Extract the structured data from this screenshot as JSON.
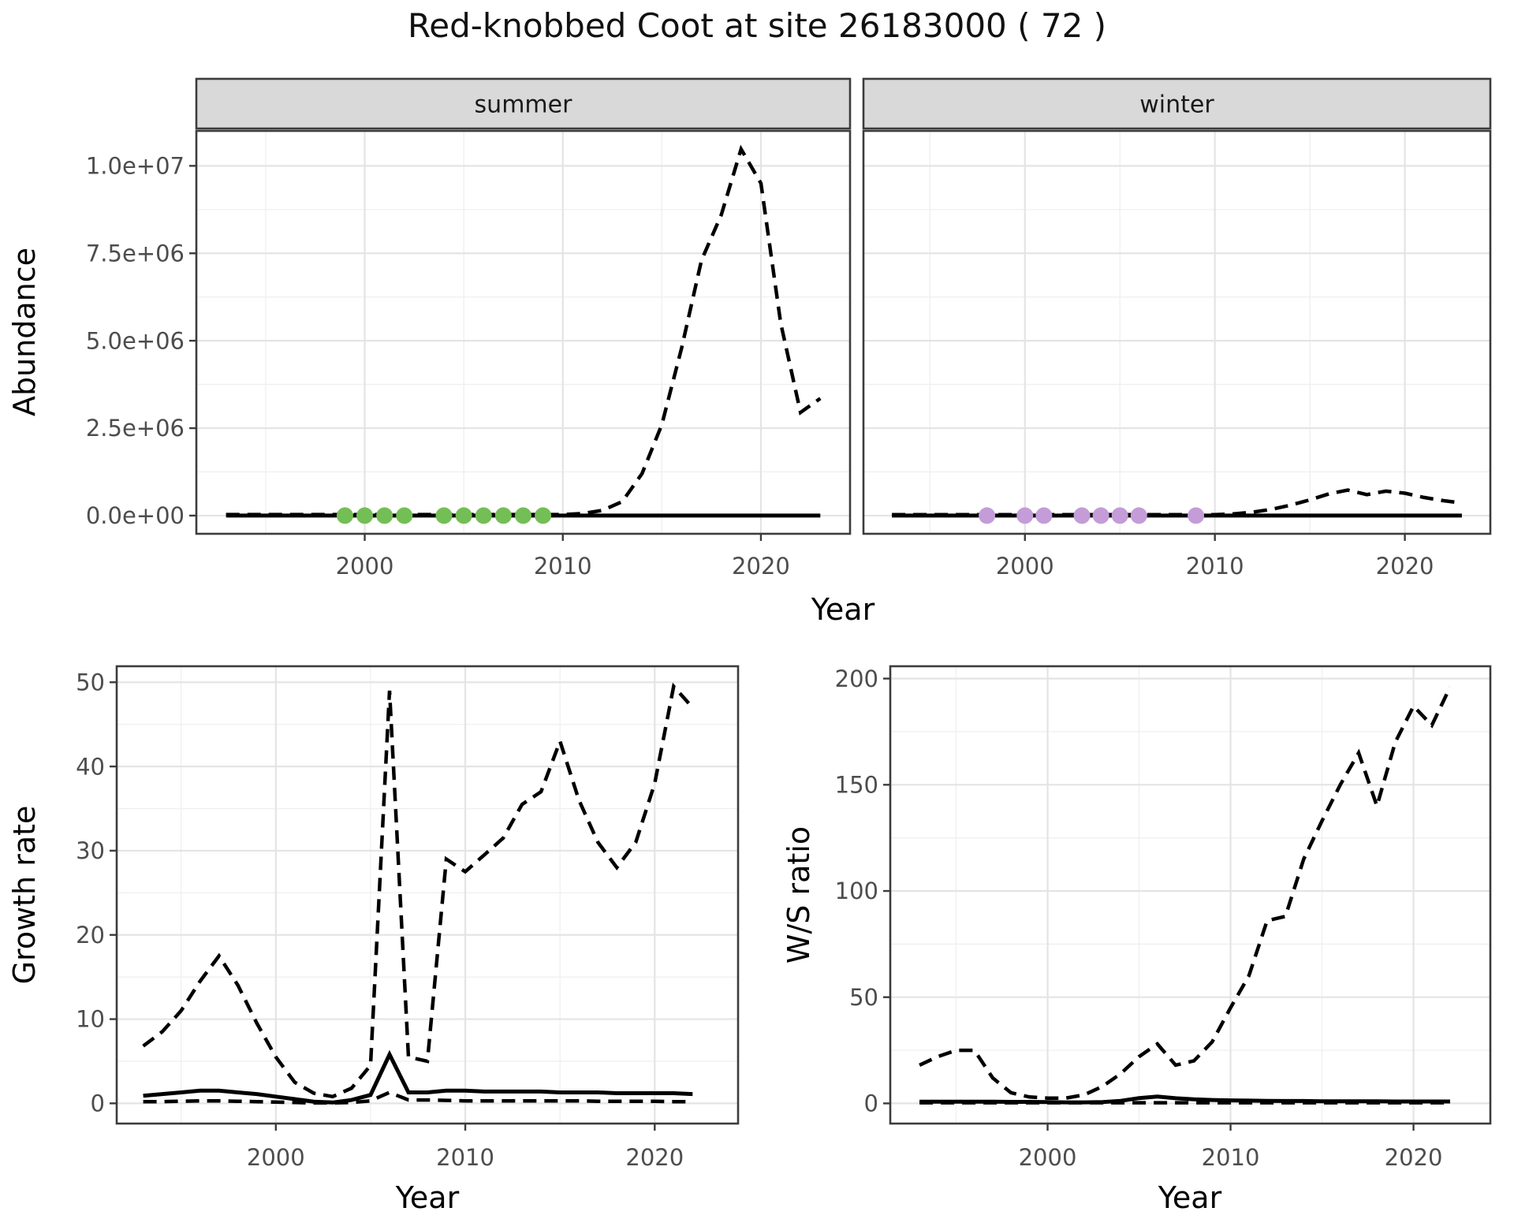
{
  "figure": {
    "title": "Red-knobbed Coot at site 26183000 ( 72 )"
  },
  "colors": {
    "line": "#000000",
    "summer_points": "#74BE56",
    "winter_points": "#C49CD8",
    "strip_bg": "#D9D9D9",
    "strip_text": "#1A1A1A",
    "grid_major": "#E4E4E4",
    "grid_minor": "#F0F0F0",
    "panel_border": "#3C3C3C",
    "tick_text": "#4D4D4D",
    "axis_title_text": "#000000"
  },
  "chart_data": [
    {
      "id": "abundance",
      "type": "line",
      "xlabel": "Year",
      "ylabel": "Abundance",
      "xticks": {
        "values": [
          2000,
          2010,
          2020
        ],
        "labels": [
          "2000",
          "2010",
          "2020"
        ]
      },
      "yticks": {
        "values": [
          0,
          2500000,
          5000000,
          7500000,
          10000000
        ],
        "labels": [
          "0.0e+00",
          "2.5e+06",
          "5.0e+06",
          "7.5e+06",
          "1.0e+07"
        ]
      },
      "xlim": [
        1991.5,
        2024.5
      ],
      "ylim": [
        -520000,
        11000000
      ],
      "years": [
        1993,
        1994,
        1995,
        1996,
        1997,
        1998,
        1999,
        2000,
        2001,
        2002,
        2003,
        2004,
        2005,
        2006,
        2007,
        2008,
        2009,
        2010,
        2011,
        2012,
        2013,
        2014,
        2015,
        2016,
        2017,
        2018,
        2019,
        2020,
        2021,
        2022,
        2023
      ],
      "facets": [
        {
          "label": "summer",
          "points_color": "summer_points",
          "points_years": [
            1999,
            2000,
            2001,
            2002,
            2004,
            2005,
            2006,
            2007,
            2008,
            2009
          ],
          "points_value": 0,
          "series": [
            {
              "name": "modeled-dashed",
              "style": "dashed",
              "values": [
                30000,
                30000,
                30000,
                30000,
                30000,
                30000,
                30000,
                30000,
                30000,
                30000,
                30000,
                30000,
                30000,
                30000,
                30000,
                30000,
                30000,
                30000,
                60000,
                150000,
                400000,
                1200000,
                2600000,
                4800000,
                7300000,
                8600000,
                10480000,
                9500000,
                5500000,
                2950000,
                3350000
              ]
            },
            {
              "name": "observed-solid",
              "style": "solid",
              "values": [
                0,
                0,
                0,
                0,
                0,
                0,
                0,
                0,
                0,
                0,
                0,
                0,
                0,
                0,
                0,
                0,
                0,
                0,
                0,
                0,
                0,
                0,
                0,
                0,
                0,
                0,
                0,
                0,
                0,
                0,
                0
              ]
            }
          ]
        },
        {
          "label": "winter",
          "points_color": "winter_points",
          "points_years": [
            1998,
            2000,
            2001,
            2003,
            2004,
            2005,
            2006,
            2009
          ],
          "points_value": 0,
          "series": [
            {
              "name": "modeled-dashed",
              "style": "dashed",
              "values": [
                25000,
                25000,
                25000,
                25000,
                25000,
                25000,
                25000,
                25000,
                25000,
                25000,
                25000,
                25000,
                25000,
                25000,
                25000,
                25000,
                25000,
                25000,
                50000,
                100000,
                180000,
                300000,
                450000,
                620000,
                730000,
                600000,
                700000,
                640000,
                520000,
                430000,
                360000
              ]
            },
            {
              "name": "observed-solid",
              "style": "solid",
              "values": [
                0,
                0,
                0,
                0,
                0,
                0,
                0,
                0,
                0,
                0,
                0,
                0,
                0,
                0,
                0,
                0,
                0,
                0,
                0,
                0,
                0,
                0,
                0,
                0,
                0,
                0,
                0,
                0,
                0,
                0,
                0
              ]
            }
          ]
        }
      ]
    },
    {
      "id": "growth_rate",
      "type": "line",
      "xlabel": "Year",
      "ylabel": "Growth rate",
      "xticks": {
        "values": [
          2000,
          2010,
          2020
        ],
        "labels": [
          "2000",
          "2010",
          "2020"
        ]
      },
      "yticks": {
        "values": [
          0,
          10,
          20,
          30,
          40,
          50
        ],
        "labels": [
          "0",
          "10",
          "20",
          "30",
          "40",
          "50"
        ]
      },
      "xlim": [
        1991.6,
        2024.4
      ],
      "ylim": [
        -2.4,
        51.9
      ],
      "years": [
        1993,
        1994,
        1995,
        1996,
        1997,
        1998,
        1999,
        2000,
        2001,
        2002,
        2003,
        2004,
        2005,
        2006,
        2007,
        2008,
        2009,
        2010,
        2011,
        2012,
        2013,
        2014,
        2015,
        2016,
        2017,
        2018,
        2019,
        2020,
        2021,
        2022
      ],
      "series": [
        {
          "name": "upper-ci-dashed",
          "style": "dashed",
          "values": [
            6.8,
            8.5,
            11,
            14.5,
            17.5,
            14,
            9.5,
            5.5,
            2.5,
            1.2,
            0.8,
            1.8,
            4.5,
            49,
            5.5,
            5,
            29,
            27.5,
            29.5,
            31.5,
            35.5,
            37,
            43,
            36,
            31,
            28,
            31,
            38,
            49.5,
            47
          ]
        },
        {
          "name": "estimate-solid",
          "style": "solid",
          "values": [
            0.9,
            1.1,
            1.3,
            1.5,
            1.5,
            1.3,
            1.1,
            0.8,
            0.5,
            0.2,
            0.1,
            0.4,
            1,
            5.8,
            1.3,
            1.3,
            1.5,
            1.5,
            1.4,
            1.4,
            1.4,
            1.4,
            1.3,
            1.3,
            1.3,
            1.2,
            1.2,
            1.2,
            1.2,
            1.1
          ]
        },
        {
          "name": "lower-ci-dashed",
          "style": "dashed",
          "values": [
            0.2,
            0.2,
            0.25,
            0.3,
            0.3,
            0.25,
            0.2,
            0.15,
            0.1,
            0.05,
            0.05,
            0.1,
            0.3,
            1.3,
            0.4,
            0.4,
            0.35,
            0.3,
            0.3,
            0.3,
            0.3,
            0.3,
            0.3,
            0.3,
            0.25,
            0.25,
            0.25,
            0.25,
            0.2,
            0.2
          ]
        }
      ]
    },
    {
      "id": "ws_ratio",
      "type": "line",
      "xlabel": "Year",
      "ylabel": "W/S ratio",
      "xticks": {
        "values": [
          2000,
          2010,
          2020
        ],
        "labels": [
          "2000",
          "2010",
          "2020"
        ]
      },
      "yticks": {
        "values": [
          0,
          50,
          100,
          150,
          200
        ],
        "labels": [
          "0",
          "50",
          "100",
          "150",
          "200"
        ]
      },
      "xlim": [
        1991.4,
        2024.2
      ],
      "ylim": [
        -9.5,
        205.8
      ],
      "years": [
        1993,
        1994,
        1995,
        1996,
        1997,
        1998,
        1999,
        2000,
        2001,
        2002,
        2003,
        2004,
        2005,
        2006,
        2007,
        2008,
        2009,
        2010,
        2011,
        2012,
        2013,
        2014,
        2015,
        2016,
        2017,
        2018,
        2019,
        2020,
        2021,
        2022
      ],
      "series": [
        {
          "name": "upper-ci-dashed",
          "style": "dashed",
          "values": [
            18,
            22,
            25,
            25,
            12,
            5,
            3,
            2.5,
            2.5,
            4,
            8,
            14,
            22,
            28,
            18,
            20,
            29,
            45,
            60,
            86,
            88,
            115,
            133,
            150,
            165,
            140,
            170,
            187,
            178,
            196
          ]
        },
        {
          "name": "estimate-solid",
          "style": "solid",
          "values": [
            0.8,
            0.8,
            0.8,
            0.8,
            0.8,
            0.7,
            0.7,
            0.6,
            0.5,
            0.5,
            0.6,
            1.2,
            2.5,
            3.2,
            2.4,
            1.9,
            1.6,
            1.4,
            1.3,
            1.2,
            1.1,
            1.1,
            1,
            1,
            1,
            1,
            0.9,
            0.9,
            0.9,
            0.9
          ]
        },
        {
          "name": "lower-ci-dashed",
          "style": "dashed",
          "values": [
            0.3,
            0.3,
            0.3,
            0.3,
            0.3,
            0.3,
            0.3,
            0.3,
            0.3,
            0.3,
            0.3,
            0.3,
            0.3,
            0.3,
            0.3,
            0.3,
            0.3,
            0.3,
            0.3,
            0.3,
            0.3,
            0.3,
            0.3,
            0.3,
            0.3,
            0.3,
            0.3,
            0.3,
            0.3,
            0.3
          ]
        }
      ]
    }
  ]
}
